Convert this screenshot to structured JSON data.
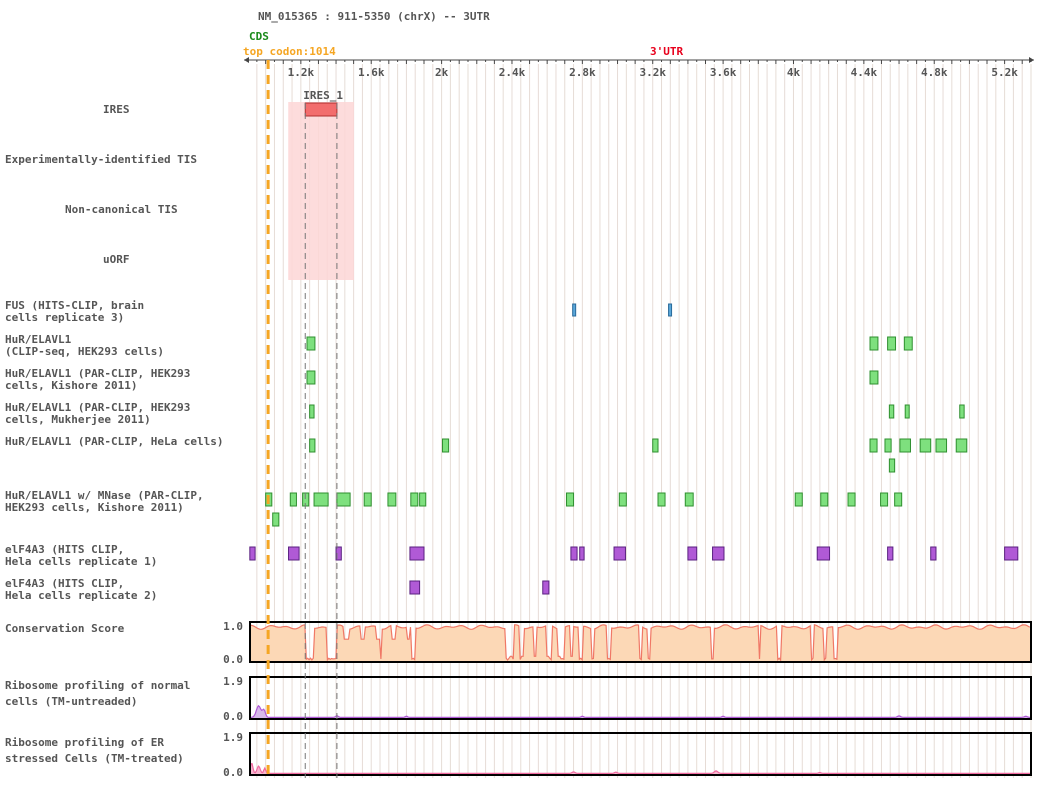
{
  "header": {
    "transcript": "NM_015365 : 911-5350 (chrX) -- 3UTR",
    "cds_label": "CDS",
    "stop_codon_label": "top codon:1014",
    "utr_label": "3'UTR",
    "stop_codon_color": "#f5a623",
    "cds_color": "#1a8a1a",
    "utr_color": "#e8001c"
  },
  "axis": {
    "range": [
      911,
      5350
    ],
    "ticks": [
      {
        "value": 1200,
        "label": "1.2k"
      },
      {
        "value": 1600,
        "label": "1.6k"
      },
      {
        "value": 2000,
        "label": "2k"
      },
      {
        "value": 2400,
        "label": "2.4k"
      },
      {
        "value": 2800,
        "label": "2.8k"
      },
      {
        "value": 3200,
        "label": "3.2k"
      },
      {
        "value": 3600,
        "label": "3.6k"
      },
      {
        "value": 4000,
        "label": "4k"
      },
      {
        "value": 4400,
        "label": "4.4k"
      },
      {
        "value": 4800,
        "label": "4.8k"
      },
      {
        "value": 5200,
        "label": "5.2k"
      }
    ],
    "stop_codon": 1014,
    "ires_region": [
      1225,
      1405
    ]
  },
  "tracks": {
    "ires": {
      "label": [
        "IRES"
      ],
      "features": [
        {
          "start": 1225,
          "end": 1405,
          "label": "IRES_1"
        }
      ],
      "color": "#f26d6d"
    },
    "exp_tis": {
      "label": [
        "Experimentally-identified TIS"
      ]
    },
    "noncanon_tis": {
      "label": [
        "Non-canonical TIS"
      ]
    },
    "uorf": {
      "label": [
        "uORF"
      ]
    },
    "fus": {
      "label": [
        "FUS (HITS-CLIP, brain",
        "cells replicate 3)"
      ],
      "color": "#5aa7d9",
      "features": [
        [
          2745,
          2760
        ],
        [
          3290,
          3305
        ]
      ]
    },
    "hur_clipseq": {
      "label": [
        "HuR/ELAVL1",
        "(CLIP-seq, HEK293 cells)"
      ],
      "color": "#7ee07e",
      "features": [
        [
          1235,
          1280
        ],
        [
          4435,
          4480
        ],
        [
          4535,
          4580
        ],
        [
          4630,
          4675
        ]
      ]
    },
    "hur_parclip_kishore": {
      "label": [
        "HuR/ELAVL1 (PAR-CLIP, HEK293",
        "cells, Kishore 2011)"
      ],
      "color": "#7ee07e",
      "features": [
        [
          1235,
          1280
        ],
        [
          4435,
          4480
        ]
      ]
    },
    "hur_parclip_mukherjee": {
      "label": [
        "HuR/ELAVL1 (PAR-CLIP, HEK293",
        "cells, Mukherjee 2011)"
      ],
      "color": "#7ee07e",
      "features": [
        [
          1250,
          1275
        ],
        [
          4545,
          4570
        ],
        [
          4635,
          4655
        ],
        [
          4945,
          4970
        ]
      ]
    },
    "hur_parclip_hela": {
      "label": [
        "HuR/ELAVL1 (PAR-CLIP, HeLa cells)"
      ],
      "color": "#7ee07e",
      "features": [
        {
          "s": 1250,
          "e": 1280,
          "r": 0
        },
        {
          "s": 2005,
          "e": 2040,
          "r": 0
        },
        {
          "s": 3200,
          "e": 3230,
          "r": 0
        },
        {
          "s": 4435,
          "e": 4475,
          "r": 0
        },
        {
          "s": 4520,
          "e": 4555,
          "r": 0
        },
        {
          "s": 4605,
          "e": 4665,
          "r": 0
        },
        {
          "s": 4720,
          "e": 4780,
          "r": 0
        },
        {
          "s": 4810,
          "e": 4870,
          "r": 0
        },
        {
          "s": 4925,
          "e": 4985,
          "r": 0
        },
        {
          "s": 4545,
          "e": 4575,
          "r": 1
        }
      ]
    },
    "hur_mnase": {
      "label": [
        "HuR/ELAVL1 w/ MNase (PAR-CLIP,",
        "HEK293 cells, Kishore 2011)"
      ],
      "color": "#7ee07e",
      "features": [
        {
          "s": 1000,
          "e": 1035,
          "r": 0
        },
        {
          "s": 1140,
          "e": 1175,
          "r": 0
        },
        {
          "s": 1210,
          "e": 1245,
          "r": 0
        },
        {
          "s": 1275,
          "e": 1355,
          "r": 0
        },
        {
          "s": 1405,
          "e": 1480,
          "r": 0
        },
        {
          "s": 1560,
          "e": 1600,
          "r": 0
        },
        {
          "s": 1695,
          "e": 1740,
          "r": 0
        },
        {
          "s": 1825,
          "e": 1865,
          "r": 0
        },
        {
          "s": 1875,
          "e": 1910,
          "r": 0
        },
        {
          "s": 2710,
          "e": 2750,
          "r": 0
        },
        {
          "s": 3010,
          "e": 3050,
          "r": 0
        },
        {
          "s": 3230,
          "e": 3270,
          "r": 0
        },
        {
          "s": 3385,
          "e": 3430,
          "r": 0
        },
        {
          "s": 4010,
          "e": 4050,
          "r": 0
        },
        {
          "s": 4155,
          "e": 4195,
          "r": 0
        },
        {
          "s": 4310,
          "e": 4350,
          "r": 0
        },
        {
          "s": 4495,
          "e": 4535,
          "r": 0
        },
        {
          "s": 4575,
          "e": 4615,
          "r": 0
        },
        {
          "s": 1040,
          "e": 1075,
          "r": 1
        }
      ]
    },
    "eif4a3_rep1": {
      "label": [
        "elF4A3 (HITS CLIP,",
        "Hela cells replicate 1)"
      ],
      "color": "#b05ad6",
      "features": [
        [
          910,
          940
        ],
        [
          1130,
          1190
        ],
        [
          1400,
          1430
        ],
        [
          1820,
          1900
        ],
        [
          2735,
          2770
        ],
        [
          2785,
          2810
        ],
        [
          2980,
          3045
        ],
        [
          3400,
          3450
        ],
        [
          3540,
          3605
        ],
        [
          4135,
          4205
        ],
        [
          4535,
          4565
        ],
        [
          4780,
          4810
        ],
        [
          5200,
          5275
        ]
      ]
    },
    "eif4a3_rep2": {
      "label": [
        "elF4A3 (HITS CLIP,",
        "Hela cells replicate 2)"
      ],
      "color": "#b05ad6",
      "features": [
        [
          1820,
          1875
        ],
        [
          2575,
          2610
        ]
      ]
    },
    "conservation": {
      "label": [
        "Conservation Score"
      ],
      "ymax_label": "1.0",
      "ymin_label": "0.0",
      "fill_color": "#fcd8b6",
      "line_color": "#f07866"
    },
    "ribo_untreated": {
      "label": [
        "Ribosome profiling of normal",
        "cells (TM-untreaded)"
      ],
      "ymax_label": "1.9",
      "ymin_label": "0.0",
      "line_color": "#b05ad6",
      "fill_color": "#d7b9ea"
    },
    "ribo_treated": {
      "label": [
        "Ribosome profiling of ER",
        "stressed Cells (TM-treated)"
      ],
      "ymax_label": "1.9",
      "ymin_label": "0.0",
      "line_color": "#f06aa0",
      "fill_color": "#f8b6cf"
    }
  }
}
